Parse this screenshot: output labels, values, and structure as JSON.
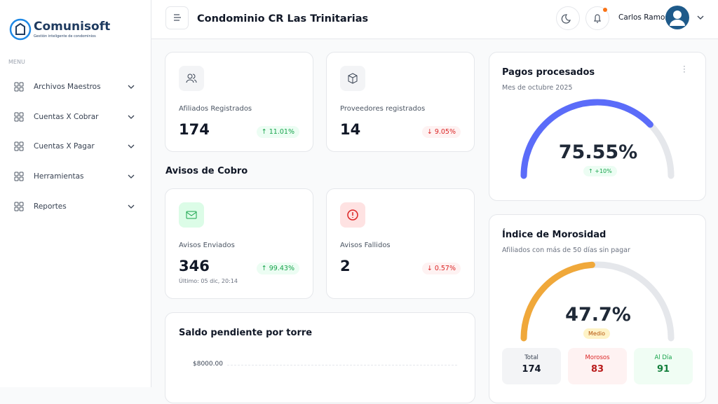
{
  "sidebar": {
    "brand": "Comunisoft",
    "tagline": "Gestión inteligente de condominios",
    "menu_label": "MENU",
    "items": [
      "Archivos Maestros",
      "Cuentas X Cobrar",
      "Cuentas X Pagar",
      "Herramientas",
      "Reportes"
    ]
  },
  "header": {
    "title": "Condominio CR Las Trinitarias",
    "user": "Carlos Ramos"
  },
  "stats": [
    {
      "label": "Afiliados Registrados",
      "value": 174,
      "change": "11.01%",
      "trend": "up"
    },
    {
      "label": "Proveedores registrados",
      "value": 14,
      "change": "9.05%",
      "trend": "down"
    }
  ],
  "section_title": "Avisos de Cobro",
  "notices": [
    {
      "label": "Avisos Enviados",
      "value": 346,
      "note": "Último: 05 dic, 20:14",
      "change": "99.43%",
      "trend": "up"
    },
    {
      "label": "Avisos Fallidos",
      "value": 2,
      "change": "0.57%",
      "trend": "down"
    }
  ],
  "balance_chart": {
    "title": "Saldo pendiente por torre",
    "ytick_label": "$8000.00"
  },
  "payments": {
    "title": "Pagos procesados",
    "subtitle": "Mes de octubre 2025",
    "gauge": {
      "value": 75.55,
      "label": "75.55%"
    },
    "badge": "+10%"
  },
  "delinquency": {
    "title": "Índice de Morosidad",
    "subtitle": "Afiliados con más de 50 días sin pagar",
    "gauge": {
      "value": 47.7,
      "label": "47.7%"
    },
    "badge": "Medio",
    "stats": [
      {
        "label": "Total",
        "value": 174
      },
      {
        "label": "Morosos",
        "value": 83
      },
      {
        "label": "Al Día",
        "value": 91
      }
    ]
  }
}
